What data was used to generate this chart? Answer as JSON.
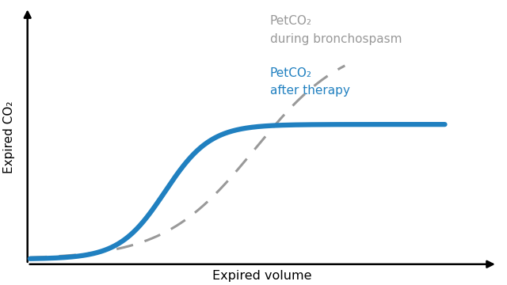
{
  "background_color": "#ffffff",
  "xlabel": "Expired volume",
  "ylabel": "Expired CO₂",
  "xlabel_fontsize": 11.5,
  "ylabel_fontsize": 11,
  "blue_color": "#2080c0",
  "gray_color": "#999999",
  "blue_linewidth": 4.5,
  "gray_linewidth": 2.2,
  "label_blue_line1": "PetCO₂",
  "label_blue_line2": "after therapy",
  "label_gray_line1": "PetCO₂",
  "label_gray_line2": "during bronchospasm",
  "label_blue_fontsize": 11,
  "label_gray_fontsize": 11,
  "xlim": [
    0,
    10
  ],
  "ylim": [
    -0.5,
    10
  ]
}
